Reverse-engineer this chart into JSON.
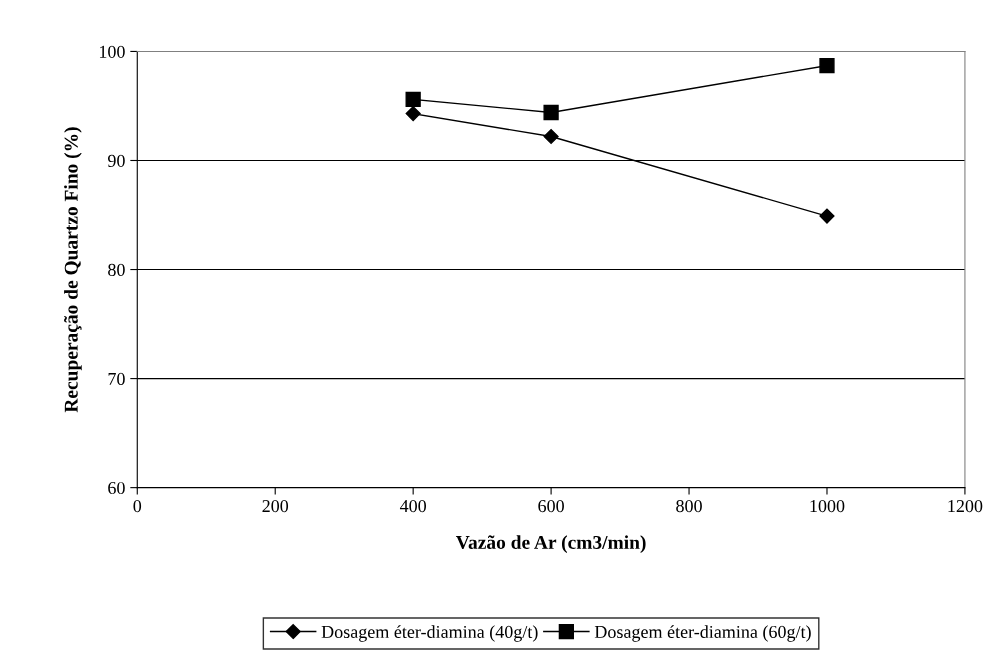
{
  "chart_data": {
    "type": "line",
    "xlabel": "Vazão de Ar (cm3/min)",
    "ylabel": "Recuperação de Quartzo Fino (%)",
    "xlim": [
      0,
      1200
    ],
    "xticks": [
      0,
      200,
      400,
      600,
      800,
      1000,
      1200
    ],
    "ylim": [
      60,
      100
    ],
    "yticks": [
      60,
      70,
      80,
      90,
      100
    ],
    "grid": "y",
    "legend": "bottom",
    "series": [
      {
        "name": "Dosagem éter-diamina (40g/t)",
        "color": "#000000",
        "marker": "diamond",
        "x": [
          400,
          600,
          1000
        ],
        "values": [
          94.3,
          92.2,
          84.9
        ]
      },
      {
        "name": "Dosagem éter-diamina (60g/t)",
        "color": "#000000",
        "marker": "square",
        "x": [
          400,
          600,
          1000
        ],
        "values": [
          95.6,
          94.4,
          98.7
        ]
      }
    ]
  }
}
